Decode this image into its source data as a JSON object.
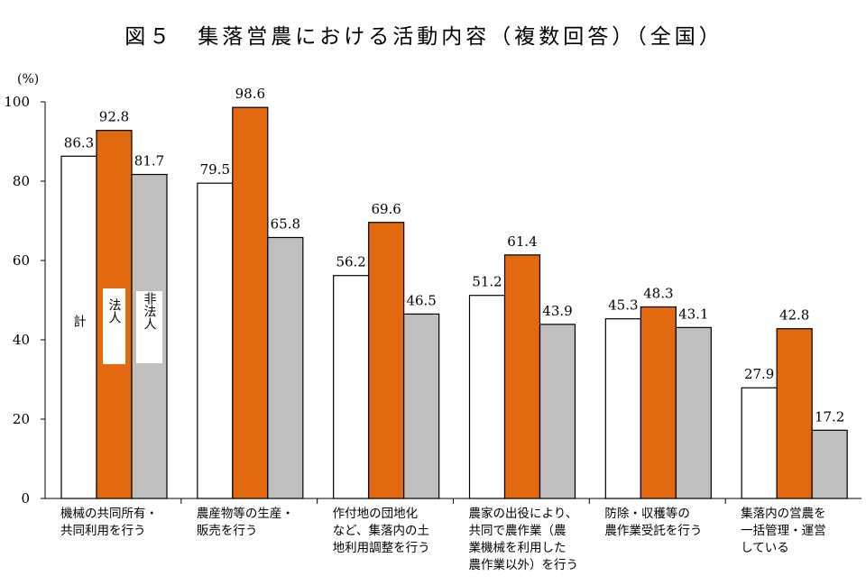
{
  "chart_data": {
    "type": "bar",
    "title": "図５　集落営農における活動内容（複数回答）（全国）",
    "ylabel": "(%)",
    "ylim": [
      0,
      100
    ],
    "yticks": [
      "0",
      "20",
      "40",
      "60",
      "80",
      "100"
    ],
    "grid": false,
    "categories": [
      [
        "機械の共同所有・",
        "共同利用を行う"
      ],
      [
        "農産物等の生産・",
        "販売を行う"
      ],
      [
        "作付地の団地化",
        "など、集落内の土",
        "地利用調整を行う"
      ],
      [
        "農家の出役により、",
        "共同で農作業（農",
        "業機械を利用した",
        "農作業以外）を行う"
      ],
      [
        "防除・収穫等の",
        "農作業受託を行う"
      ],
      [
        "集落内の営農を",
        "一括管理・運営",
        "している"
      ]
    ],
    "series": [
      {
        "name": "計",
        "color": "#ffffff",
        "values": [
          86.3,
          79.5,
          56.2,
          51.2,
          45.3,
          27.9
        ]
      },
      {
        "name": "法人",
        "color": "#e2690f",
        "values": [
          92.8,
          98.6,
          69.6,
          61.4,
          48.3,
          42.8
        ]
      },
      {
        "name": "非法人",
        "color": "#bfbfbf",
        "values": [
          81.7,
          65.8,
          46.5,
          43.9,
          43.1,
          17.2
        ]
      }
    ]
  }
}
